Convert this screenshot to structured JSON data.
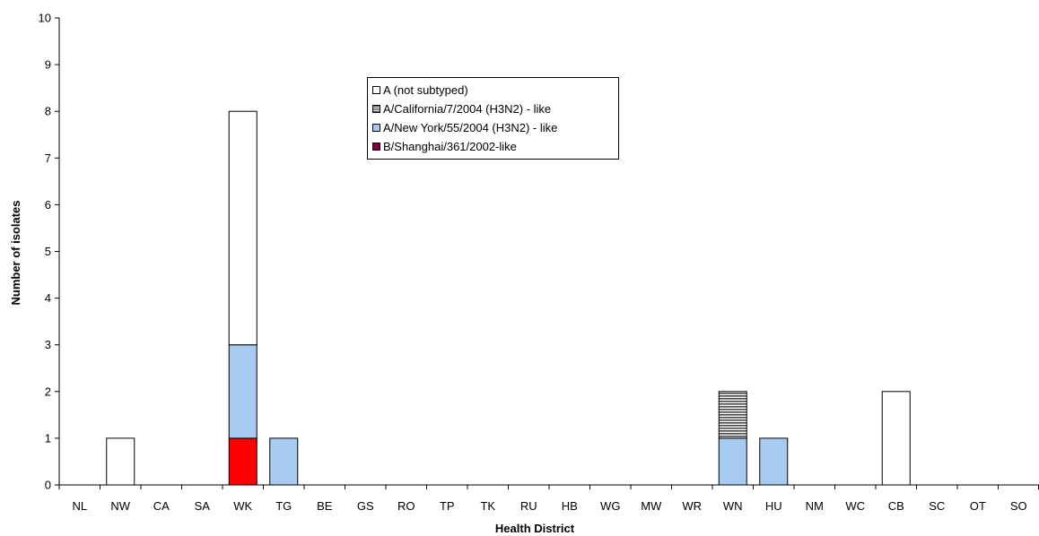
{
  "chart_data": {
    "type": "bar",
    "stacked": true,
    "xlabel": "Health District",
    "ylabel": "Number of isolates",
    "ylim": [
      0,
      10
    ],
    "yticks": [
      0,
      1,
      2,
      3,
      4,
      5,
      6,
      7,
      8,
      9,
      10
    ],
    "grid": false,
    "legend_position": "top-center",
    "categories": [
      "NL",
      "NW",
      "CA",
      "SA",
      "WK",
      "TG",
      "BE",
      "GS",
      "RO",
      "TP",
      "TK",
      "RU",
      "HB",
      "WG",
      "MW",
      "WR",
      "WN",
      "HU",
      "NM",
      "WC",
      "CB",
      "SC",
      "OT",
      "SO"
    ],
    "series": [
      {
        "name": "B/Shanghai/361/2002-like",
        "color": "#ff0000",
        "legend_color": "#800040",
        "pattern": "solid",
        "values": [
          0,
          0,
          0,
          0,
          1,
          0,
          0,
          0,
          0,
          0,
          0,
          0,
          0,
          0,
          0,
          0,
          0,
          0,
          0,
          0,
          0,
          0,
          0,
          0
        ]
      },
      {
        "name": "A/New York/55/2004 (H3N2) - like",
        "color": "#a6caf0",
        "pattern": "solid",
        "values": [
          0,
          0,
          0,
          0,
          2,
          1,
          0,
          0,
          0,
          0,
          0,
          0,
          0,
          0,
          0,
          0,
          1,
          1,
          0,
          0,
          0,
          0,
          0,
          0
        ]
      },
      {
        "name": "A/California/7/2004 (H3N2) - like",
        "color": "#808080",
        "pattern": "horizontal-stripes",
        "values": [
          0,
          0,
          0,
          0,
          0,
          0,
          0,
          0,
          0,
          0,
          0,
          0,
          0,
          0,
          0,
          0,
          1,
          0,
          0,
          0,
          0,
          0,
          0,
          0
        ]
      },
      {
        "name": "A (not subtyped)",
        "color": "#ffffff",
        "pattern": "solid",
        "values": [
          0,
          1,
          0,
          0,
          5,
          0,
          0,
          0,
          0,
          0,
          0,
          0,
          0,
          0,
          0,
          0,
          0,
          0,
          0,
          0,
          2,
          0,
          0,
          0
        ]
      }
    ],
    "legend_order": [
      "A (not subtyped)",
      "A/California/7/2004 (H3N2) - like",
      "A/New York/55/2004 (H3N2) - like",
      "B/Shanghai/361/2002-like"
    ]
  }
}
